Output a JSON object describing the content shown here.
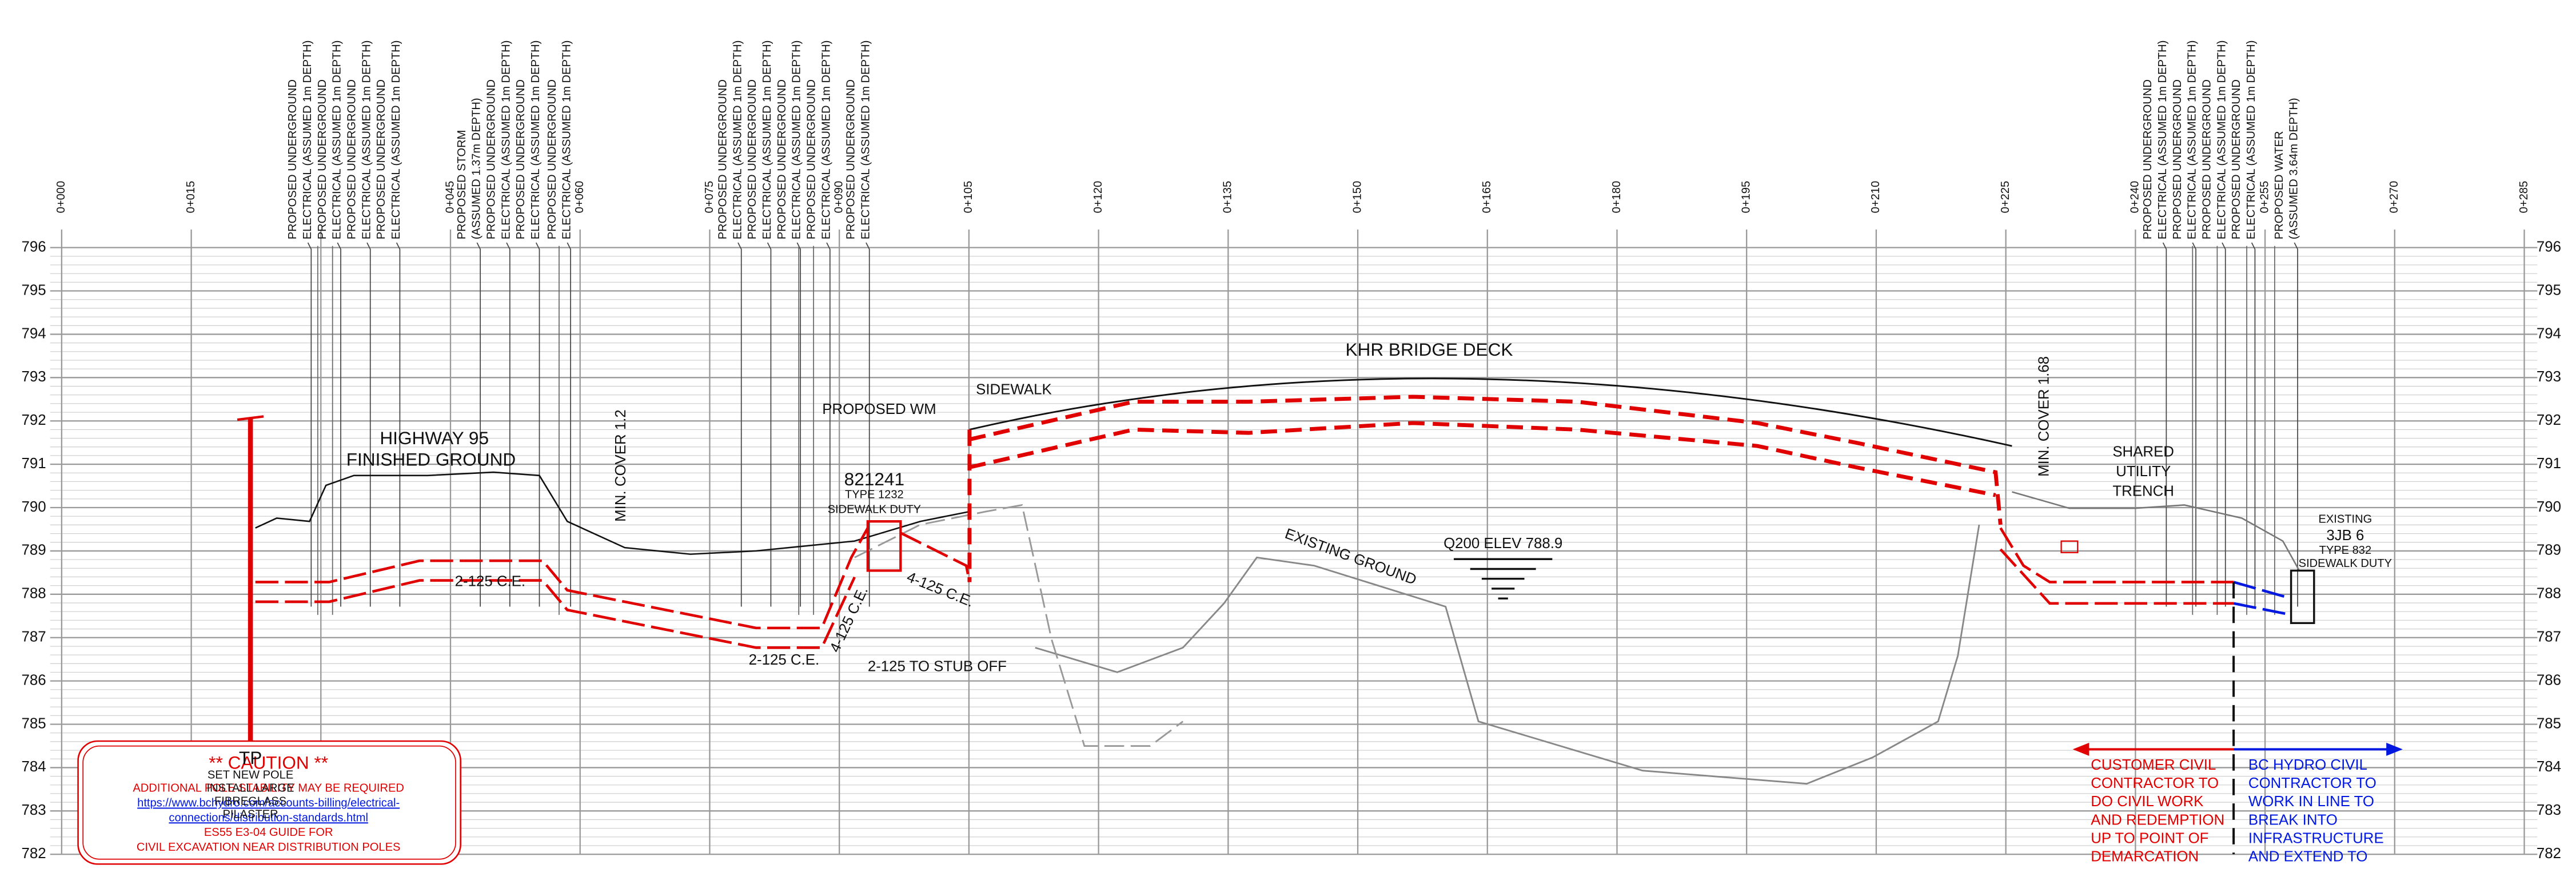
{
  "profile": {
    "stations": [
      "0+000",
      "0+015",
      null,
      "0+045",
      "0+060",
      "0+075",
      "0+090",
      "0+105",
      "0+120",
      "0+135",
      "0+150",
      "0+165",
      "0+180",
      "0+195",
      "0+210",
      "0+225",
      "0+240",
      "0+255",
      "0+270",
      "0+285"
    ],
    "elevations": [
      796,
      795,
      794,
      793,
      792,
      791,
      790,
      789,
      788,
      787,
      786,
      785,
      784,
      783,
      782
    ]
  },
  "utility_labels": [
    "PROPOSED UNDERGROUND",
    "ELECTRICAL (ASSUMED 1m DEPTH)",
    "PROPOSED UNDERGROUND",
    "ELECTRICAL (ASSUMED 1m DEPTH)",
    "PROPOSED UNDERGROUND",
    "ELECTRICAL (ASSUMED 1m DEPTH)",
    "PROPOSED UNDERGROUND",
    "ELECTRICAL (ASSUMED 1m DEPTH)",
    "PROPOSED STORM",
    "(ASSUMED 1.37m DEPTH)",
    "PROPOSED UNDERGROUND",
    "ELECTRICAL (ASSUMED 1m DEPTH)",
    "PROPOSED UNDERGROUND",
    "ELECTRICAL (ASSUMED 1m DEPTH)",
    "PROPOSED UNDERGROUND",
    "ELECTRICAL (ASSUMED 1m DEPTH)",
    "PROPOSED UNDERGROUND",
    "ELECTRICAL (ASSUMED 1m DEPTH)",
    "PROPOSED UNDERGROUND",
    "ELECTRICAL (ASSUMED 1m DEPTH)",
    "PROPOSED UNDERGROUND",
    "ELECTRICAL (ASSUMED 1m DEPTH)",
    "PROPOSED UNDERGROUND",
    "ELECTRICAL (ASSUMED 1m DEPTH)",
    "PROPOSED UNDERGROUND",
    "ELECTRICAL (ASSUMED 1m DEPTH)",
    "PROPOSED UNDERGROUND",
    "ELECTRICAL (ASSUMED 1m DEPTH)",
    "PROPOSED UNDERGROUND",
    "ELECTRICAL (ASSUMED 1m DEPTH)",
    "PROPOSED UNDERGROUND",
    "ELECTRICAL (ASSUMED 1m DEPTH)",
    "PROPOSED UNDERGROUND",
    "ELECTRICAL (ASSUMED 1m DEPTH)",
    "PROPOSED WATER",
    "(ASSUMED 3.64m DEPTH)"
  ],
  "annotations": {
    "highway": "HIGHWAY 95",
    "finished_ground": "FINISHED GROUND",
    "min_cover_left": "MIN. COVER 1.2",
    "min_cover_right": "MIN. COVER 1.68",
    "box_id": "821241",
    "box_type": "TYPE 1232",
    "box_duty": "SIDEWALK DUTY",
    "proposed_wm": "PROPOSED WM",
    "sidewalk": "SIDEWALK",
    "bridge_deck": "KHR BRIDGE DECK",
    "conduit_1": "2-125 C.E.",
    "conduit_2": "2-125 C.E.",
    "conduit_3": "4-125 C.E.",
    "conduit_4": "4-125 C.E.",
    "stub_off": "2-125 TO STUB OFF",
    "existing_ground": "EXISTING GROUND",
    "q200": "Q200  ELEV 788.9",
    "shared": "SHARED",
    "utility": "UTILITY",
    "trench": "TRENCH",
    "jb_existing": "EXISTING",
    "jb_id": "3JB 6",
    "jb_type": "TYPE 832",
    "jb_duty": "SIDEWALK DUTY",
    "tp": "TP",
    "tp_notes": [
      "SET NEW POLE",
      "INSTALL LARGE",
      "FIBREGLASS",
      "PILASTER"
    ]
  },
  "caution": {
    "title": "** CAUTION **",
    "lines": [
      "ADDITIONAL POLE STABILITY MAY BE REQUIRED",
      "https://www.bchydro.com/accounts-billing/electrical-",
      "connections/distribution-standards.html",
      "ES55 E3-04 GUIDE FOR",
      "CIVIL EXCAVATION NEAR DISTRIBUTION POLES"
    ]
  },
  "customer_note": [
    "CUSTOMER CIVIL",
    "CONTRACTOR TO",
    "DO CIVIL WORK",
    "AND REDEMPTION",
    "UP TO POINT OF",
    "DEMARCATION"
  ],
  "bc_hydro_note": [
    "BC HYDRO CIVIL",
    "CONTRACTOR TO",
    "WORK IN LINE TO",
    "BREAK INTO",
    "INFRASTRUCTURE",
    "AND EXTEND TO"
  ]
}
